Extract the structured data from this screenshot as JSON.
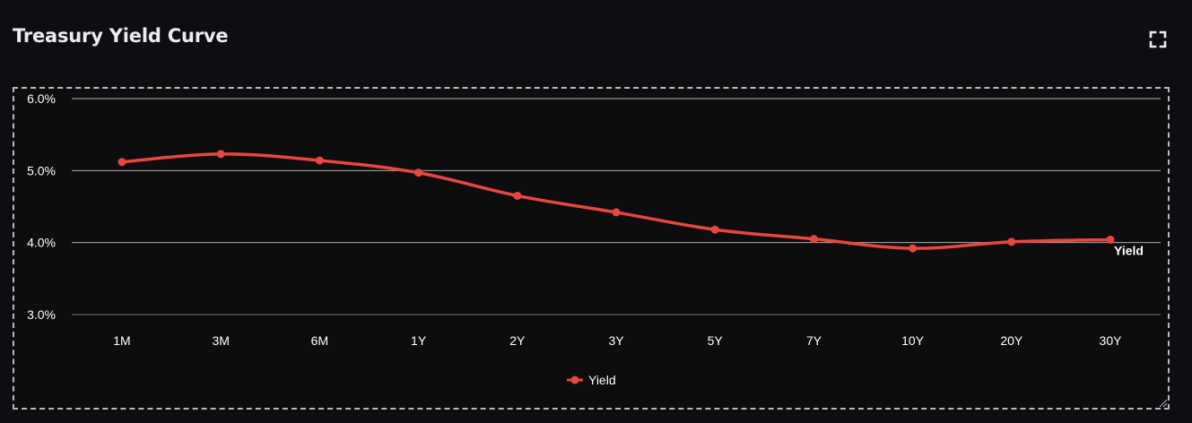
{
  "header": {
    "title": "Treasury Yield Curve",
    "expand_icon": "fullscreen-icon"
  },
  "chart_data": {
    "type": "line",
    "categories": [
      "1M",
      "3M",
      "6M",
      "1Y",
      "2Y",
      "3Y",
      "5Y",
      "7Y",
      "10Y",
      "20Y",
      "30Y"
    ],
    "series": [
      {
        "name": "Yield",
        "values": [
          5.12,
          5.23,
          5.14,
          4.97,
          4.65,
          4.42,
          4.18,
          4.05,
          3.92,
          4.01,
          4.04
        ],
        "color": "#e8463f"
      }
    ],
    "ylim": [
      3.0,
      6.0
    ],
    "yticks": [
      "6.0%",
      "5.0%",
      "4.0%",
      "3.0%"
    ],
    "ytick_values": [
      6.0,
      5.0,
      4.0,
      3.0
    ],
    "end_label": "Yield",
    "legend": {
      "position": "bottom-center",
      "label": "Yield"
    },
    "grid": true,
    "colors": {
      "line": "#e8463f",
      "grid": "#c9c9cc",
      "text": "#ffffff"
    }
  }
}
